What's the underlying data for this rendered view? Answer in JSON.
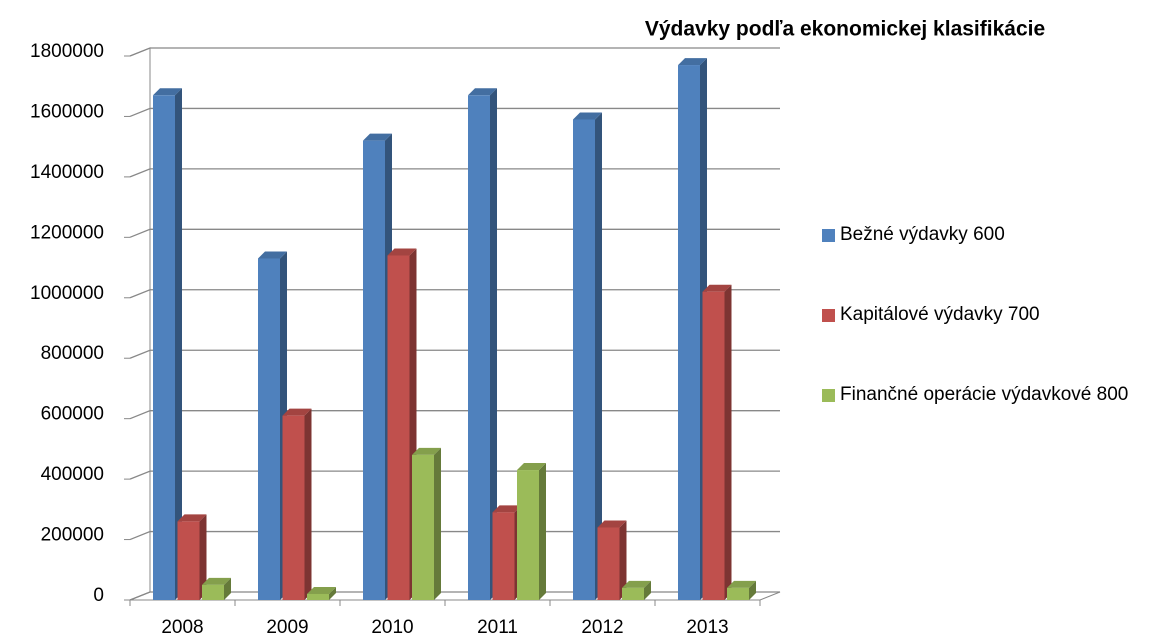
{
  "chart_data": {
    "type": "bar3d",
    "title": "Výdavky podľa ekonomickej klasifikácie",
    "categories": [
      "2008",
      "2009",
      "2010",
      "2011",
      "2012",
      "2013"
    ],
    "series": [
      {
        "name": "Bežné výdavky 600",
        "color": "#4f81bd",
        "values": [
          1670000,
          1130000,
          1520000,
          1670000,
          1590000,
          1770000
        ]
      },
      {
        "name": "Kapitálové výdavky 700",
        "color": "#c0504d",
        "values": [
          260000,
          610000,
          1140000,
          290000,
          240000,
          1020000
        ]
      },
      {
        "name": "Finančné operácie výdavkové 800",
        "color": "#9bbb59",
        "values": [
          50000,
          20000,
          480000,
          430000,
          40000,
          40000
        ]
      }
    ],
    "ylim": [
      0,
      1800000
    ],
    "yticks": [
      0,
      200000,
      400000,
      600000,
      800000,
      1000000,
      1200000,
      1400000,
      1600000,
      1800000
    ],
    "grid": true,
    "legend": "right"
  }
}
